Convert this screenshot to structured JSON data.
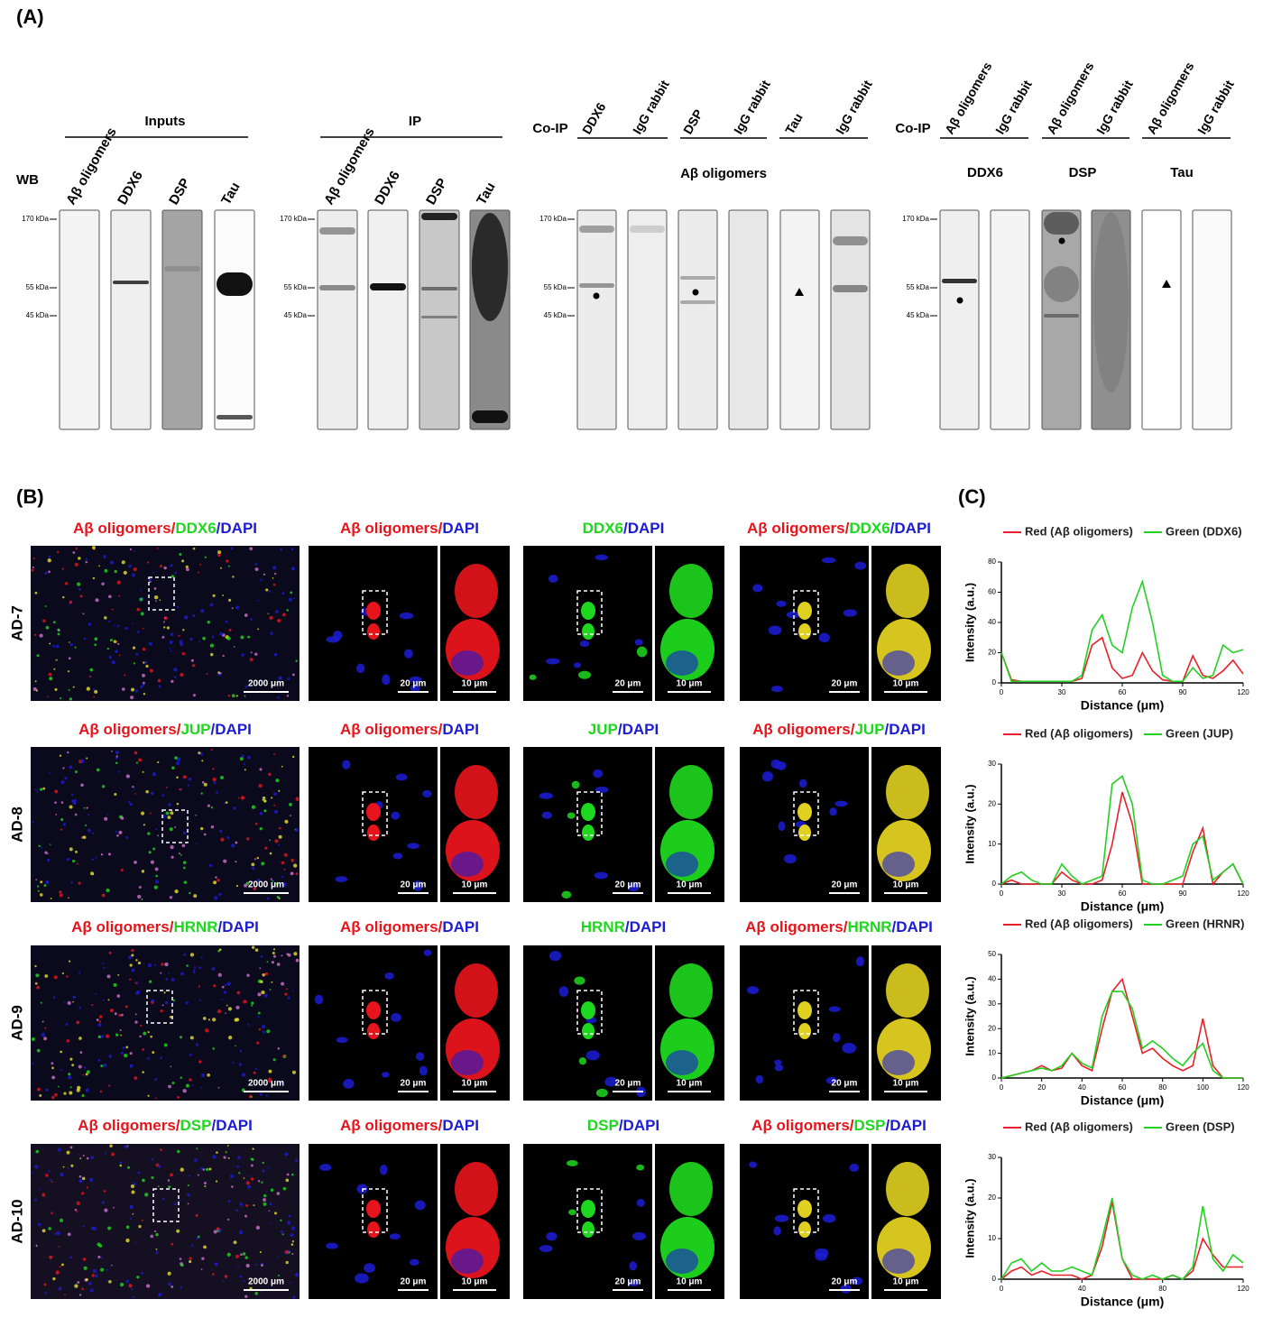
{
  "panel_a": {
    "label": "(A)",
    "wb": "WB",
    "markers": [
      "170 kDa",
      "55 kDa",
      "45 kDa"
    ],
    "inputs": {
      "title": "Inputs",
      "lanes": [
        "Aβ oligomers",
        "DDX6",
        "DSP",
        "Tau"
      ]
    },
    "ip": {
      "title": "IP",
      "lanes": [
        "Aβ oligomers",
        "DDX6",
        "DSP",
        "Tau"
      ]
    },
    "coip_1": {
      "title": "Co-IP",
      "lanes": [
        "DDX6",
        "IgG rabbit",
        "DSP",
        "IgG rabbit",
        "Tau",
        "IgG rabbit"
      ],
      "probe": "Aβ oligomers"
    },
    "coip_2": {
      "title": "Co-IP",
      "lanes": [
        "Aβ oligomers",
        "IgG rabbit",
        "Aβ oligomers",
        "IgG rabbit",
        "Aβ oligomers",
        "IgG rabbit"
      ],
      "probes": [
        "DDX6",
        "DSP",
        "Tau"
      ]
    }
  },
  "panel_b": {
    "label": "(B)",
    "channel_colors": {
      "red": "#e8141b",
      "green": "#1ed81e",
      "blue": "#1c1cd6"
    },
    "scale_bars": [
      "2000 μm",
      "20 μm",
      "10 μm"
    ],
    "rows": [
      {
        "sample": "AD-7",
        "titles": [
          [
            {
              "text": "Aβ oligomers/",
              "channel": "red"
            },
            {
              "text": "DDX6",
              "channel": "green"
            },
            {
              "text": "/DAPI",
              "channel": "blue"
            }
          ],
          [
            {
              "text": "Aβ oligomers/",
              "channel": "red"
            },
            {
              "text": "DAPI",
              "channel": "blue"
            }
          ],
          [
            {
              "text": "DDX6",
              "channel": "green"
            },
            {
              "text": "/DAPI",
              "channel": "blue"
            }
          ],
          [
            {
              "text": "Aβ oligomers/",
              "channel": "red"
            },
            {
              "text": "DDX6",
              "channel": "green"
            },
            {
              "text": "/DAPI",
              "channel": "blue"
            }
          ]
        ]
      },
      {
        "sample": "AD-8",
        "titles": [
          [
            {
              "text": "Aβ oligomers/",
              "channel": "red"
            },
            {
              "text": "JUP",
              "channel": "green"
            },
            {
              "text": "/DAPI",
              "channel": "blue"
            }
          ],
          [
            {
              "text": "Aβ oligomers/",
              "channel": "red"
            },
            {
              "text": "DAPI",
              "channel": "blue"
            }
          ],
          [
            {
              "text": "JUP",
              "channel": "green"
            },
            {
              "text": "/DAPI",
              "channel": "blue"
            }
          ],
          [
            {
              "text": "Aβ oligomers/",
              "channel": "red"
            },
            {
              "text": "JUP",
              "channel": "green"
            },
            {
              "text": "/DAPI",
              "channel": "blue"
            }
          ]
        ]
      },
      {
        "sample": "AD-9",
        "titles": [
          [
            {
              "text": "Aβ oligomers/",
              "channel": "red"
            },
            {
              "text": "HRNR",
              "channel": "green"
            },
            {
              "text": "/DAPI",
              "channel": "blue"
            }
          ],
          [
            {
              "text": "Aβ oligomers/",
              "channel": "red"
            },
            {
              "text": "DAPI",
              "channel": "blue"
            }
          ],
          [
            {
              "text": "HRNR",
              "channel": "green"
            },
            {
              "text": "/DAPI",
              "channel": "blue"
            }
          ],
          [
            {
              "text": "Aβ oligomers/",
              "channel": "red"
            },
            {
              "text": "HRNR",
              "channel": "green"
            },
            {
              "text": "/DAPI",
              "channel": "blue"
            }
          ]
        ]
      },
      {
        "sample": "AD-10",
        "titles": [
          [
            {
              "text": "Aβ oligomers/",
              "channel": "red"
            },
            {
              "text": "DSP",
              "channel": "green"
            },
            {
              "text": "/DAPI",
              "channel": "blue"
            }
          ],
          [
            {
              "text": "Aβ oligomers/",
              "channel": "red"
            },
            {
              "text": "DAPI",
              "channel": "blue"
            }
          ],
          [
            {
              "text": "DSP",
              "channel": "green"
            },
            {
              "text": "/DAPI",
              "channel": "blue"
            }
          ],
          [
            {
              "text": "Aβ oligomers/",
              "channel": "red"
            },
            {
              "text": "DSP",
              "channel": "green"
            },
            {
              "text": "/DAPI",
              "channel": "blue"
            }
          ]
        ]
      }
    ]
  },
  "panel_c": {
    "label": "(C)"
  },
  "chart_data": [
    {
      "type": "line",
      "legend_position": "top",
      "xlabel": "Distance (μm)",
      "ylabel": "Intensity (a.u.)",
      "x": [
        0,
        5,
        10,
        15,
        20,
        25,
        30,
        35,
        40,
        45,
        50,
        55,
        60,
        65,
        70,
        75,
        80,
        85,
        90,
        95,
        100,
        105,
        110,
        115,
        120
      ],
      "xlim": [
        0,
        120
      ],
      "xticks": [
        0,
        30,
        60,
        90,
        120
      ],
      "ylim": [
        0,
        80
      ],
      "yticks": [
        0,
        20,
        40,
        60,
        80
      ],
      "series": [
        {
          "name": "Red (Aβ oligomers)",
          "color": "#e8202a",
          "values": [
            20,
            2,
            1,
            1,
            1,
            1,
            1,
            1,
            3,
            25,
            30,
            10,
            3,
            5,
            20,
            8,
            2,
            1,
            1,
            18,
            5,
            3,
            8,
            15,
            6
          ]
        },
        {
          "name": "Green (DDX6)",
          "color": "#22d022",
          "values": [
            20,
            1,
            1,
            1,
            1,
            1,
            1,
            1,
            5,
            35,
            45,
            25,
            20,
            50,
            67,
            40,
            5,
            1,
            1,
            10,
            3,
            5,
            25,
            20,
            22
          ]
        }
      ]
    },
    {
      "type": "line",
      "legend_position": "top",
      "xlabel": "Distance (μm)",
      "ylabel": "Intensity (a.u.)",
      "x": [
        0,
        5,
        10,
        15,
        20,
        25,
        30,
        35,
        40,
        45,
        50,
        55,
        60,
        65,
        70,
        75,
        80,
        85,
        90,
        95,
        100,
        105,
        110,
        115,
        120
      ],
      "xlim": [
        0,
        120
      ],
      "xticks": [
        0,
        30,
        60,
        90,
        120
      ],
      "ylim": [
        0,
        30
      ],
      "yticks": [
        0,
        10,
        20,
        30
      ],
      "series": [
        {
          "name": "Red (Aβ oligomers)",
          "color": "#e8202a",
          "values": [
            0,
            1,
            0,
            0,
            0,
            0,
            3,
            1,
            0,
            0,
            1,
            10,
            23,
            15,
            0,
            0,
            0,
            0,
            0,
            8,
            14,
            0,
            3,
            5,
            0
          ]
        },
        {
          "name": "Green (JUP)",
          "color": "#22d022",
          "values": [
            0,
            2,
            3,
            1,
            0,
            0,
            5,
            2,
            0,
            1,
            2,
            25,
            27,
            20,
            1,
            0,
            0,
            1,
            2,
            10,
            12,
            1,
            3,
            5,
            0
          ]
        }
      ]
    },
    {
      "type": "line",
      "legend_position": "top",
      "xlabel": "Distance (μm)",
      "ylabel": "Intensity (a.u.)",
      "x": [
        0,
        5,
        10,
        15,
        20,
        25,
        30,
        35,
        40,
        45,
        50,
        55,
        60,
        65,
        70,
        75,
        80,
        85,
        90,
        95,
        100,
        105,
        110,
        115,
        120
      ],
      "xlim": [
        0,
        120
      ],
      "xticks": [
        0,
        20,
        40,
        60,
        80,
        100,
        120
      ],
      "ylim": [
        0,
        50
      ],
      "yticks": [
        0,
        10,
        20,
        30,
        40,
        50
      ],
      "series": [
        {
          "name": "Red (Aβ oligomers)",
          "color": "#e8202a",
          "values": [
            0,
            1,
            2,
            3,
            5,
            3,
            4,
            10,
            5,
            3,
            20,
            35,
            40,
            25,
            10,
            12,
            8,
            5,
            3,
            5,
            24,
            5,
            0,
            0,
            0
          ]
        },
        {
          "name": "Green (HRNR)",
          "color": "#22d022",
          "values": [
            0,
            1,
            2,
            3,
            4,
            3,
            5,
            10,
            6,
            4,
            25,
            35,
            35,
            28,
            12,
            15,
            12,
            8,
            5,
            10,
            14,
            3,
            0,
            0,
            0
          ]
        }
      ]
    },
    {
      "type": "line",
      "legend_position": "top",
      "xlabel": "Distance (μm)",
      "ylabel": "Intensity (a.u.)",
      "x": [
        0,
        5,
        10,
        15,
        20,
        25,
        30,
        35,
        40,
        45,
        50,
        55,
        60,
        65,
        70,
        75,
        80,
        85,
        90,
        95,
        100,
        105,
        110,
        115,
        120
      ],
      "xlim": [
        0,
        120
      ],
      "xticks": [
        0,
        40,
        80,
        120
      ],
      "ylim": [
        0,
        30
      ],
      "yticks": [
        0,
        10,
        20,
        30
      ],
      "series": [
        {
          "name": "Red (Aβ oligomers)",
          "color": "#e8202a",
          "values": [
            0,
            2,
            3,
            1,
            2,
            1,
            1,
            1,
            0,
            1,
            8,
            19,
            5,
            0,
            0,
            0,
            0,
            1,
            0,
            2,
            10,
            6,
            3,
            3,
            3
          ]
        },
        {
          "name": "Green (DSP)",
          "color": "#22d022",
          "values": [
            0,
            4,
            5,
            2,
            4,
            2,
            2,
            3,
            2,
            1,
            10,
            20,
            5,
            1,
            0,
            1,
            0,
            1,
            0,
            3,
            18,
            5,
            2,
            6,
            4
          ]
        }
      ]
    }
  ]
}
